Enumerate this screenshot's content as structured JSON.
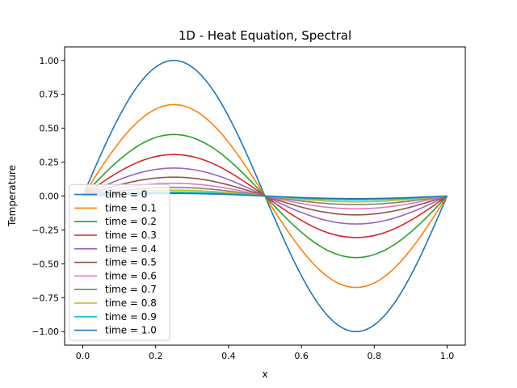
{
  "chart_data": {
    "type": "line",
    "title": "1D - Heat Equation, Spectral",
    "xlabel": "x",
    "ylabel": "Temperature",
    "xlim": [
      -0.05,
      1.05
    ],
    "ylim": [
      -1.1,
      1.1
    ],
    "xticks": [
      "0.0",
      "0.2",
      "0.4",
      "0.6",
      "0.8",
      "1.0"
    ],
    "yticks": [
      "−1.00",
      "−0.75",
      "−0.50",
      "−0.25",
      "0.00",
      "0.25",
      "0.50",
      "0.75",
      "1.00"
    ],
    "grid": false,
    "legend_position": "lower-left",
    "curve": "amplitude * sin(2*pi*x), 0 <= x <= 1",
    "series": [
      {
        "name": "time = 0",
        "amplitude": 1.0,
        "color": "#1f77b4"
      },
      {
        "name": "time = 0.1",
        "amplitude": 0.674,
        "color": "#ff7f0e"
      },
      {
        "name": "time = 0.2",
        "amplitude": 0.454,
        "color": "#2ca02c"
      },
      {
        "name": "time = 0.3",
        "amplitude": 0.306,
        "color": "#d62728"
      },
      {
        "name": "time = 0.4",
        "amplitude": 0.206,
        "color": "#9467bd"
      },
      {
        "name": "time = 0.5",
        "amplitude": 0.139,
        "color": "#8c564b"
      },
      {
        "name": "time = 0.6",
        "amplitude": 0.094,
        "color": "#e377c2"
      },
      {
        "name": "time = 0.7",
        "amplitude": 0.063,
        "color": "#7f7f7f"
      },
      {
        "name": "time = 0.8",
        "amplitude": 0.043,
        "color": "#bcbd22"
      },
      {
        "name": "time = 0.9",
        "amplitude": 0.029,
        "color": "#17becf"
      },
      {
        "name": "time = 1.0",
        "amplitude": 0.019,
        "color": "#1f77b4"
      }
    ]
  }
}
